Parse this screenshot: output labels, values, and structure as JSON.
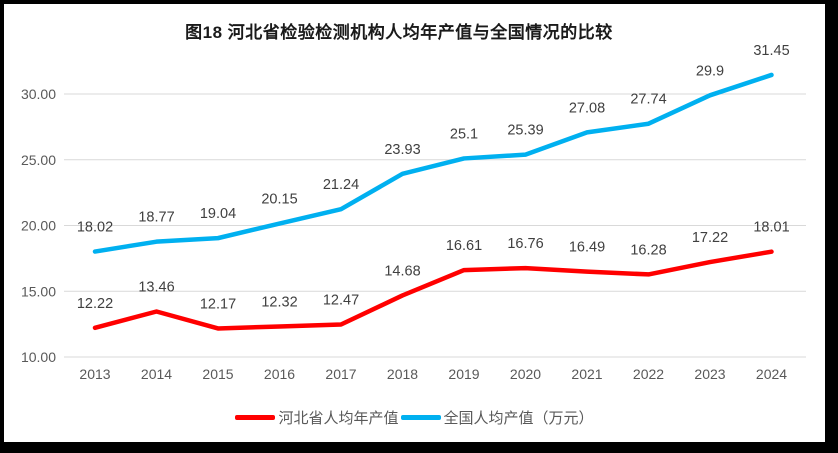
{
  "frame": {
    "border_color": "#000000",
    "background": "#ffffff"
  },
  "chart_data": {
    "type": "line",
    "title": "图18 河北省检验检测机构人均年产值与全国情况的比较",
    "categories": [
      "2013",
      "2014",
      "2015",
      "2016",
      "2017",
      "2018",
      "2019",
      "2020",
      "2021",
      "2022",
      "2023",
      "2024"
    ],
    "series": [
      {
        "id": "hebei",
        "name": "河北省人均年产值",
        "color": "#FF0000",
        "values": [
          12.22,
          13.46,
          12.17,
          12.32,
          12.47,
          14.68,
          16.61,
          16.76,
          16.49,
          16.28,
          17.22,
          18.01
        ]
      },
      {
        "id": "national",
        "name": "全国人均产值（万元）",
        "color": "#00B0F0",
        "values": [
          18.02,
          18.77,
          19.04,
          20.15,
          21.24,
          23.93,
          25.1,
          25.39,
          27.08,
          27.74,
          29.9,
          31.45
        ]
      }
    ],
    "xlabel": "",
    "ylabel": "",
    "ylim": [
      10,
      32.5
    ],
    "yticks": [
      10,
      15,
      20,
      25,
      30
    ],
    "ytick_format": "two_decimals",
    "grid": "horizontal",
    "gridline_color": "#D9D9D9",
    "legend_position": "bottom",
    "data_labels": "above"
  }
}
